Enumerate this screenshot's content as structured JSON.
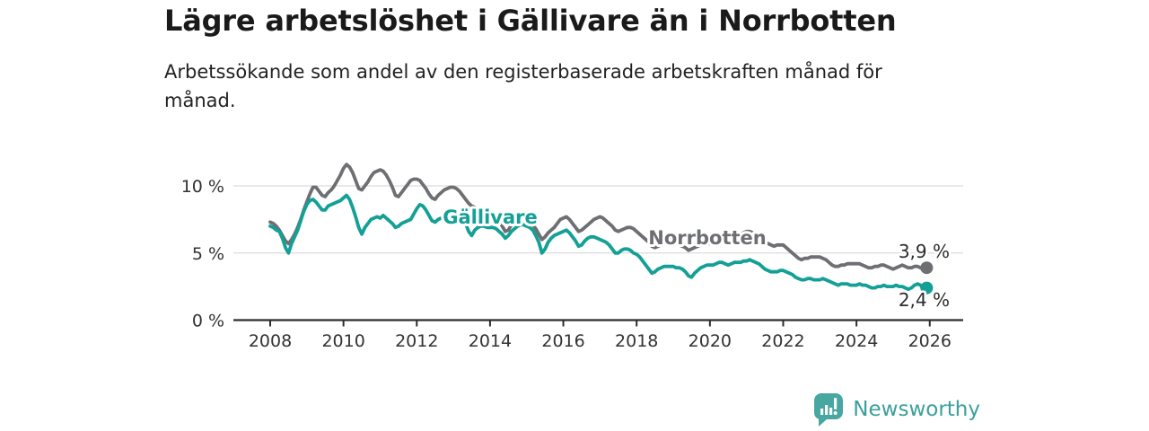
{
  "footer": {
    "brand": "Newsworthy",
    "logo_icon": "bar-chart-pin-icon"
  },
  "colors": {
    "gallivare": "#14a096",
    "norrbotten": "#6e6f73",
    "axis": "#2d2d2d",
    "gridline": "#dcdcdc",
    "tick_label": "#333333",
    "end_label": "#2d2d2d",
    "title": "#1a1a1a",
    "logo": "#48a7a1",
    "background": "#ffffff"
  },
  "chart_data": {
    "type": "line",
    "title": "Lägre arbetslöshet i Gällivare än i Norrbotten",
    "subtitle": "Arbetssökande som andel av den registerbaserade arbetskraften månad för månad.",
    "x_unit": "month",
    "x_start": "2008-01",
    "x_end": "2025-12",
    "xticks": [
      2008,
      2010,
      2012,
      2014,
      2016,
      2018,
      2020,
      2022,
      2024,
      2026
    ],
    "ytick_values": [
      0,
      5,
      10
    ],
    "ytick_labels": [
      "0 %",
      "5 %",
      "10 %"
    ],
    "ylim": [
      0,
      12.5
    ],
    "grid": "horizontal",
    "legend": "inline-labels",
    "series": [
      {
        "name": "Norrbotten",
        "slug": "norrbotten",
        "color": "#6e6f73",
        "end_value": 3.9,
        "end_label": "3,9 %",
        "values": [
          7.3,
          7.2,
          7.0,
          6.7,
          6.3,
          5.9,
          5.7,
          6.0,
          6.4,
          6.9,
          7.5,
          8.2,
          8.8,
          9.4,
          9.9,
          9.9,
          9.6,
          9.3,
          9.2,
          9.5,
          9.7,
          10.0,
          10.4,
          10.8,
          11.3,
          11.6,
          11.4,
          11.0,
          10.4,
          9.8,
          9.7,
          10.0,
          10.3,
          10.7,
          11.0,
          11.1,
          11.2,
          11.1,
          10.8,
          10.4,
          9.9,
          9.3,
          9.2,
          9.5,
          9.8,
          10.1,
          10.4,
          10.5,
          10.5,
          10.4,
          10.1,
          9.8,
          9.4,
          9.1,
          9.0,
          9.3,
          9.5,
          9.7,
          9.8,
          9.9,
          9.9,
          9.8,
          9.6,
          9.3,
          9.0,
          8.7,
          8.5,
          8.4,
          8.3,
          8.1,
          7.9,
          7.7,
          7.6,
          7.5,
          7.4,
          7.3,
          7.0,
          6.6,
          6.7,
          7.1,
          7.3,
          7.4,
          7.5,
          7.5,
          7.4,
          7.3,
          7.1,
          6.8,
          6.4,
          6.0,
          6.2,
          6.5,
          6.7,
          6.9,
          7.2,
          7.5,
          7.6,
          7.7,
          7.5,
          7.2,
          6.9,
          6.6,
          6.7,
          6.9,
          7.1,
          7.3,
          7.5,
          7.6,
          7.7,
          7.6,
          7.4,
          7.2,
          7.0,
          6.7,
          6.6,
          6.7,
          6.8,
          6.9,
          6.9,
          6.8,
          6.6,
          6.4,
          6.2,
          6.0,
          5.8,
          5.5,
          5.4,
          5.5,
          5.6,
          5.7,
          5.8,
          5.8,
          5.8,
          5.7,
          5.6,
          5.5,
          5.4,
          5.2,
          5.3,
          5.4,
          5.5,
          5.6,
          5.6,
          5.7,
          5.7,
          5.7,
          5.9,
          6.2,
          6.4,
          6.4,
          6.3,
          6.4,
          6.5,
          6.4,
          6.4,
          6.5,
          6.6,
          6.6,
          6.5,
          6.3,
          6.1,
          5.9,
          5.8,
          5.7,
          5.6,
          5.5,
          5.6,
          5.6,
          5.6,
          5.4,
          5.2,
          5.0,
          4.8,
          4.6,
          4.5,
          4.6,
          4.6,
          4.7,
          4.7,
          4.7,
          4.7,
          4.6,
          4.5,
          4.3,
          4.1,
          4.0,
          4.0,
          4.1,
          4.1,
          4.2,
          4.2,
          4.2,
          4.2,
          4.2,
          4.1,
          4.0,
          3.9,
          3.9,
          4.0,
          4.0,
          4.1,
          4.1,
          4.0,
          3.9,
          3.8,
          3.9,
          4.0,
          4.1,
          4.0,
          3.9,
          3.9,
          4.0,
          4.0,
          3.9,
          3.8,
          3.9
        ]
      },
      {
        "name": "Gällivare",
        "slug": "gallivare",
        "color": "#14a096",
        "end_value": 2.4,
        "end_label": "2,4 %",
        "values": [
          7.0,
          6.9,
          6.7,
          6.6,
          6.1,
          5.4,
          5.0,
          5.7,
          6.2,
          6.7,
          7.4,
          8.1,
          8.6,
          8.9,
          9.0,
          8.8,
          8.5,
          8.2,
          8.2,
          8.5,
          8.6,
          8.7,
          8.8,
          8.9,
          9.1,
          9.3,
          9.0,
          8.4,
          7.7,
          6.9,
          6.4,
          6.9,
          7.2,
          7.5,
          7.6,
          7.7,
          7.6,
          7.8,
          7.6,
          7.4,
          7.2,
          6.9,
          7.0,
          7.2,
          7.3,
          7.4,
          7.5,
          7.9,
          8.3,
          8.6,
          8.5,
          8.2,
          7.8,
          7.4,
          7.3,
          7.5,
          7.6,
          7.6,
          7.6,
          7.7,
          7.9,
          8.0,
          7.9,
          7.6,
          7.2,
          6.6,
          6.3,
          6.7,
          6.9,
          7.0,
          7.0,
          6.9,
          6.9,
          6.9,
          6.8,
          6.6,
          6.4,
          6.1,
          6.3,
          6.6,
          6.8,
          7.0,
          7.1,
          7.1,
          7.0,
          6.9,
          6.7,
          6.3,
          5.8,
          5.0,
          5.3,
          5.8,
          6.1,
          6.3,
          6.4,
          6.5,
          6.6,
          6.7,
          6.5,
          6.2,
          5.9,
          5.5,
          5.6,
          5.9,
          6.1,
          6.2,
          6.2,
          6.1,
          6.0,
          5.9,
          5.8,
          5.6,
          5.3,
          5.0,
          5.0,
          5.2,
          5.3,
          5.3,
          5.2,
          5.0,
          4.9,
          4.7,
          4.4,
          4.1,
          3.8,
          3.5,
          3.6,
          3.8,
          3.9,
          4.0,
          4.0,
          4.0,
          4.0,
          3.9,
          3.9,
          3.8,
          3.6,
          3.3,
          3.2,
          3.5,
          3.7,
          3.9,
          4.0,
          4.1,
          4.1,
          4.1,
          4.2,
          4.3,
          4.3,
          4.2,
          4.1,
          4.2,
          4.3,
          4.3,
          4.3,
          4.4,
          4.4,
          4.5,
          4.4,
          4.3,
          4.2,
          4.0,
          3.8,
          3.7,
          3.6,
          3.6,
          3.6,
          3.7,
          3.7,
          3.6,
          3.5,
          3.4,
          3.2,
          3.1,
          3.0,
          3.0,
          3.1,
          3.1,
          3.0,
          3.0,
          3.0,
          3.1,
          3.0,
          2.9,
          2.8,
          2.7,
          2.6,
          2.7,
          2.7,
          2.7,
          2.6,
          2.6,
          2.6,
          2.7,
          2.6,
          2.6,
          2.5,
          2.4,
          2.4,
          2.5,
          2.5,
          2.6,
          2.5,
          2.5,
          2.5,
          2.6,
          2.5,
          2.5,
          2.4,
          2.3,
          2.4,
          2.6,
          2.7,
          2.6,
          2.2,
          2.4
        ]
      }
    ]
  }
}
